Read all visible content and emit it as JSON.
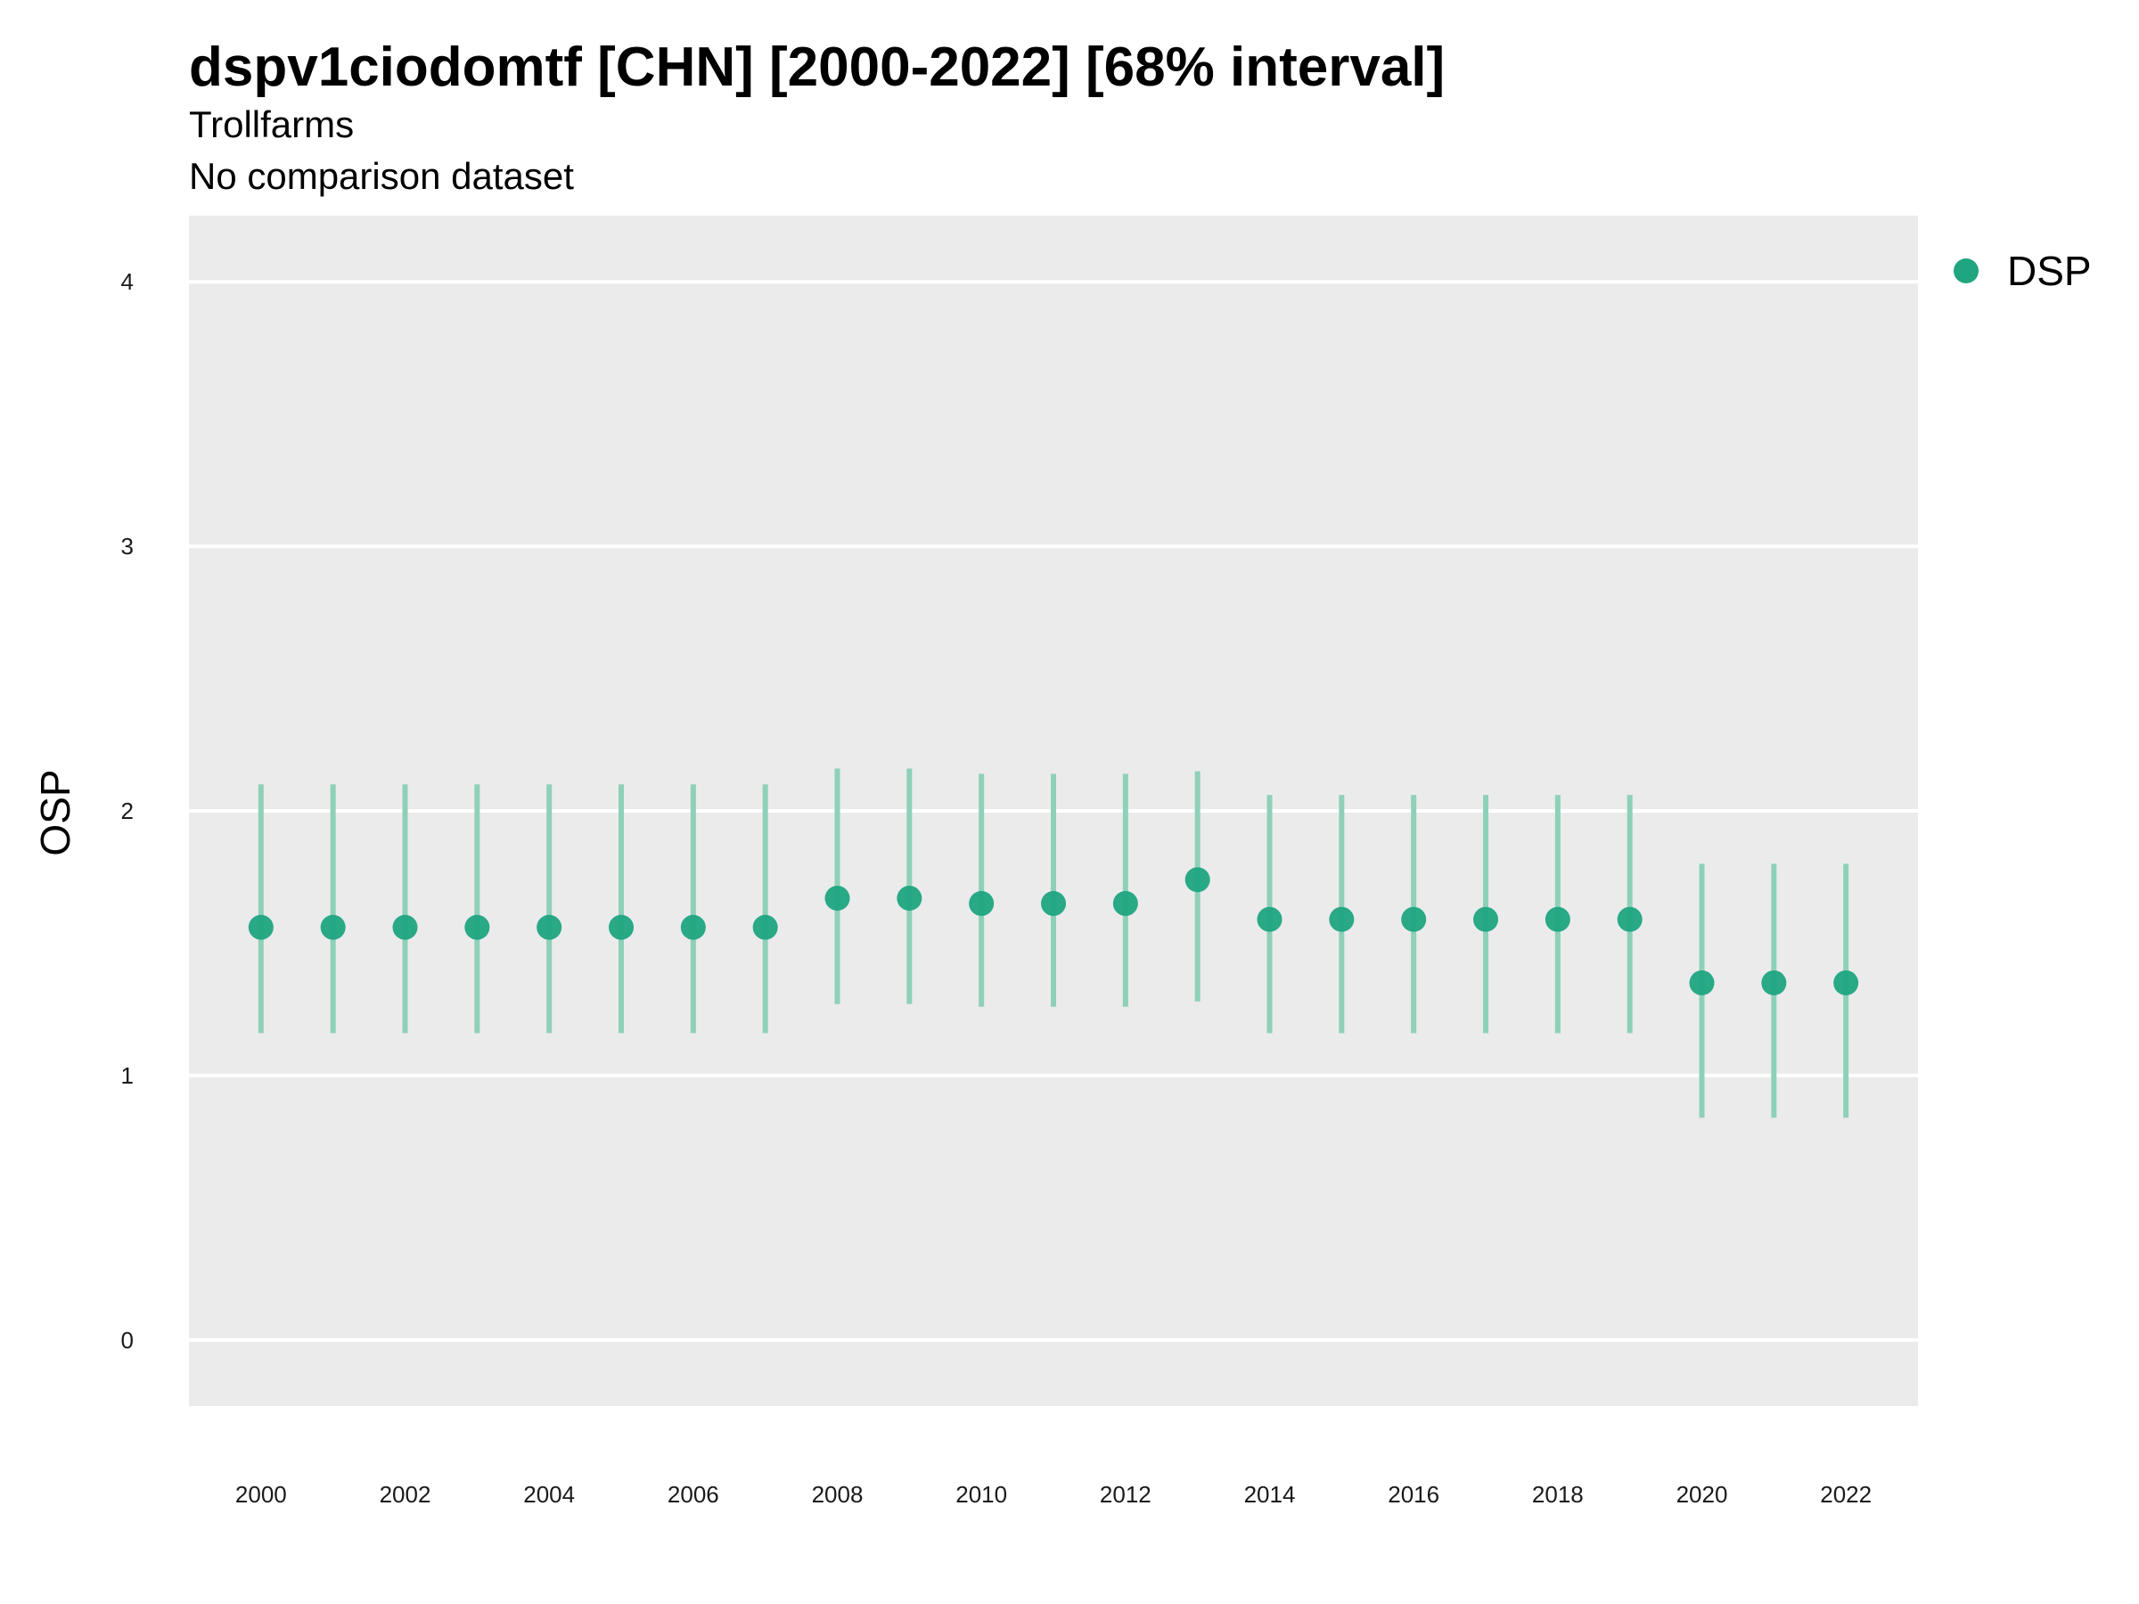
{
  "header": {
    "title": "dspv1ciodomtf [CHN] [2000-2022] [68% interval]",
    "subtitle": "Trollfarms",
    "caption": "No comparison dataset"
  },
  "legend": {
    "label": "DSP",
    "position": "top-right"
  },
  "colors": {
    "point": "#1fa57f",
    "interval": "#8ed0b8",
    "panel": "#ebebeb",
    "grid": "#ffffff"
  },
  "chart_data": {
    "type": "scatter",
    "title": "dspv1ciodomtf [CHN] [2000-2022] [68% interval]",
    "ylabel": "OSP",
    "xlabel": "",
    "ylim": [
      -0.25,
      4.25
    ],
    "xlim": [
      1999,
      2023
    ],
    "yticks": [
      0,
      1,
      2,
      3,
      4
    ],
    "xticks": [
      2000,
      2002,
      2004,
      2006,
      2008,
      2010,
      2012,
      2014,
      2016,
      2018,
      2020,
      2022
    ],
    "grid": true,
    "series": [
      {
        "name": "DSP",
        "x": [
          2000,
          2001,
          2002,
          2003,
          2004,
          2005,
          2006,
          2007,
          2008,
          2009,
          2010,
          2011,
          2012,
          2013,
          2014,
          2015,
          2016,
          2017,
          2018,
          2019,
          2020,
          2021,
          2022
        ],
        "y": [
          1.56,
          1.56,
          1.56,
          1.56,
          1.56,
          1.56,
          1.56,
          1.56,
          1.67,
          1.67,
          1.65,
          1.65,
          1.65,
          1.74,
          1.59,
          1.59,
          1.59,
          1.59,
          1.59,
          1.59,
          1.35,
          1.35,
          1.35
        ],
        "lower": [
          1.16,
          1.16,
          1.16,
          1.16,
          1.16,
          1.16,
          1.16,
          1.16,
          1.27,
          1.27,
          1.26,
          1.26,
          1.26,
          1.28,
          1.16,
          1.16,
          1.16,
          1.16,
          1.16,
          1.16,
          0.84,
          0.84,
          0.84
        ],
        "upper": [
          2.1,
          2.1,
          2.1,
          2.1,
          2.1,
          2.1,
          2.1,
          2.1,
          2.16,
          2.16,
          2.14,
          2.14,
          2.14,
          2.15,
          2.06,
          2.06,
          2.06,
          2.06,
          2.06,
          2.06,
          1.8,
          1.8,
          1.8
        ]
      }
    ]
  }
}
